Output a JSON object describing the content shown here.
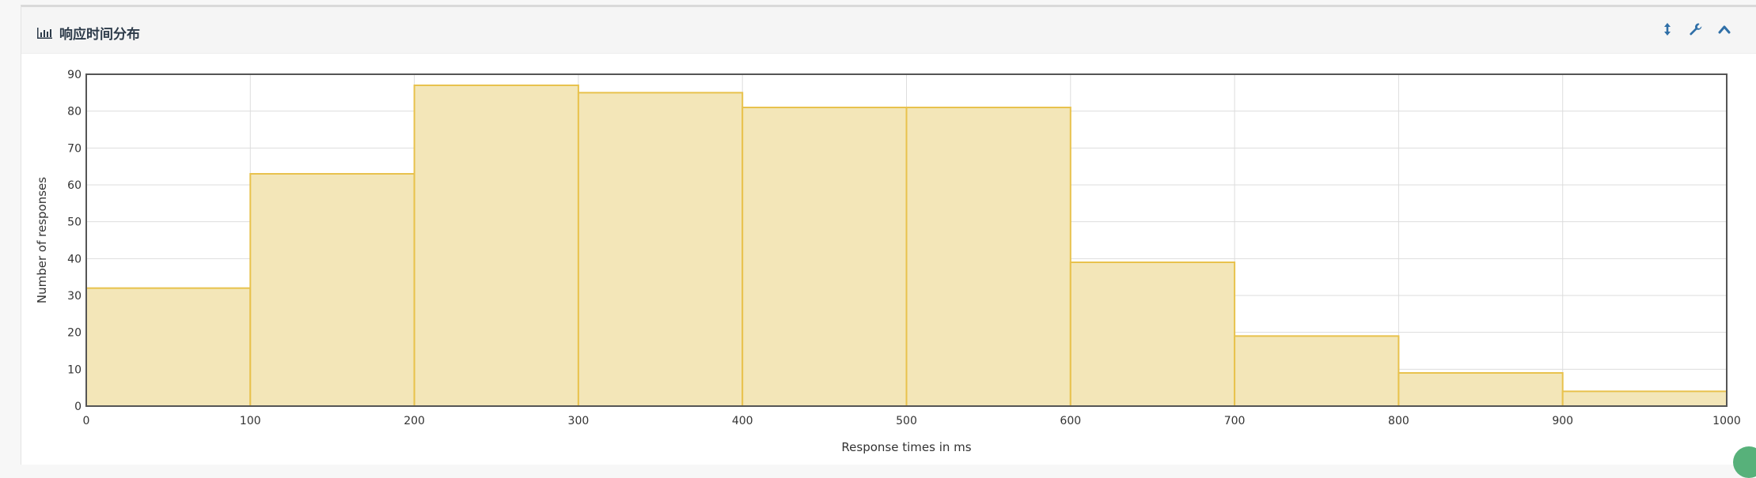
{
  "panel": {
    "title": "响应时间分布",
    "title_icon": "bar-chart-icon",
    "tools": [
      {
        "name": "resize-vertical-icon",
        "label": "↕"
      },
      {
        "name": "wrench-icon",
        "label": "wrench"
      },
      {
        "name": "chevron-up-icon",
        "label": "collapse"
      }
    ],
    "accent_color": "#2f6fa7"
  },
  "chart_data": {
    "type": "bar",
    "title": "",
    "xlabel": "Response times in ms",
    "ylabel": "Number of responses",
    "bin_edges": [
      0,
      100,
      200,
      300,
      400,
      500,
      600,
      700,
      800,
      900,
      1000
    ],
    "values": [
      32,
      63,
      87,
      85,
      81,
      81,
      39,
      19,
      9,
      4
    ],
    "xlim": [
      0,
      1000
    ],
    "ylim": [
      0,
      90
    ],
    "x_ticks": [
      0,
      100,
      200,
      300,
      400,
      500,
      600,
      700,
      800,
      900,
      1000
    ],
    "y_ticks": [
      0,
      10,
      20,
      30,
      40,
      50,
      60,
      70,
      80,
      90
    ],
    "grid": true,
    "fill_color": "#f3e6b8",
    "stroke_color": "#e8c24d"
  }
}
